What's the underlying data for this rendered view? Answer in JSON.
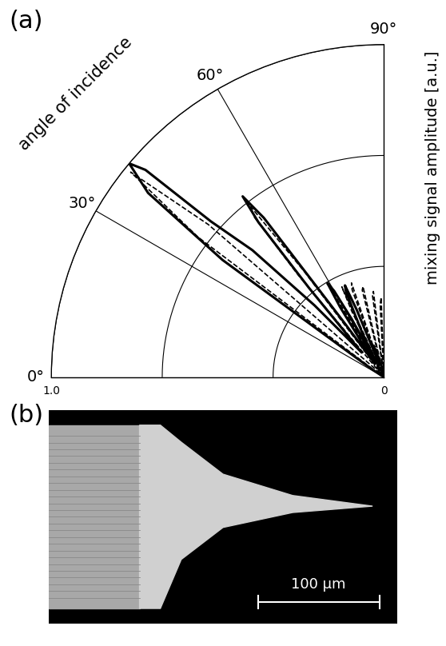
{
  "chart_data": {
    "type": "polar_line",
    "title": "(a)",
    "xlabel": "angle of incidence",
    "ylabel": "mixing signal amplitude [a.u.]",
    "xlim": [
      0,
      90
    ],
    "xticks": [
      {
        "value": 0,
        "label": "0°"
      },
      {
        "value": 30,
        "label": "30°"
      },
      {
        "value": 60,
        "label": "60°"
      },
      {
        "value": 90,
        "label": "90°"
      }
    ],
    "ylim": [
      0,
      1.0
    ],
    "yticks": [
      0,
      1.0
    ],
    "grid": true,
    "series": [
      {
        "color": "#000000",
        "line_style": "solid",
        "x": [
          30,
          34,
          36,
          38,
          40,
          41,
          42,
          44,
          46,
          48,
          50,
          51,
          52,
          53,
          54,
          56,
          58,
          59,
          60,
          61,
          62,
          64,
          66,
          67,
          68,
          70,
          72,
          75,
          80,
          85,
          90
        ],
        "values": [
          0,
          0.05,
          0.6,
          0.9,
          1.0,
          0.95,
          0.7,
          0.55,
          0.3,
          0.1,
          0.35,
          0.6,
          0.69,
          0.6,
          0.2,
          0.05,
          0.25,
          0.33,
          0.3,
          0.2,
          0.05,
          0.15,
          0.28,
          0.3,
          0.22,
          0.05,
          0.1,
          0.05,
          0.02,
          0.01,
          0
        ]
      },
      {
        "color": "#000000",
        "line_style": "dashed",
        "x": [
          30,
          35,
          37,
          39,
          41,
          43,
          45,
          48,
          50,
          51,
          52,
          53,
          55,
          57,
          58,
          59,
          61,
          63,
          64,
          65,
          67,
          69,
          70,
          71,
          73,
          75,
          76,
          77,
          79,
          81,
          82,
          83,
          85,
          87,
          88,
          90
        ],
        "values": [
          0,
          0.02,
          0.7,
          0.98,
          0.7,
          0.05,
          0.02,
          0.0,
          0.4,
          0.62,
          0.65,
          0.4,
          0.02,
          0.0,
          0.25,
          0.32,
          0.05,
          0.0,
          0.22,
          0.3,
          0.02,
          0.0,
          0.28,
          0.3,
          0.0,
          0.0,
          0.27,
          0.28,
          0.0,
          0.0,
          0.25,
          0.26,
          0.0,
          0.22,
          0.24,
          0
        ]
      }
    ]
  },
  "image_panel": {
    "label": "(b)",
    "scale_bar": "100 μm"
  }
}
